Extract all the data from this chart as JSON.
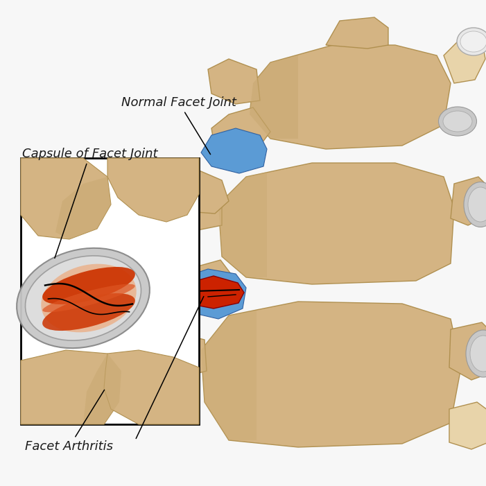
{
  "bg_color": "#f7f7f7",
  "labels": {
    "normal_facet_joint": "Normal Facet Joint",
    "capsule_of_facet_joint": "Capsule of Facet Joint",
    "facet_arthritis": "Facet Arthritis"
  },
  "bone_color": "#d4b483",
  "bone_light": "#e8d4aa",
  "bone_mid": "#c8a870",
  "disc_blue": "#5b9bd5",
  "grey_light": "#c8c8c8",
  "grey_dark": "#888888",
  "red_color": "#cc2200",
  "orange_red": "#dd5500",
  "peach_color": "#e8b898",
  "dark_red": "#880000",
  "font_size": 13,
  "font_style": "italic",
  "text_color": "#1a1a1a"
}
